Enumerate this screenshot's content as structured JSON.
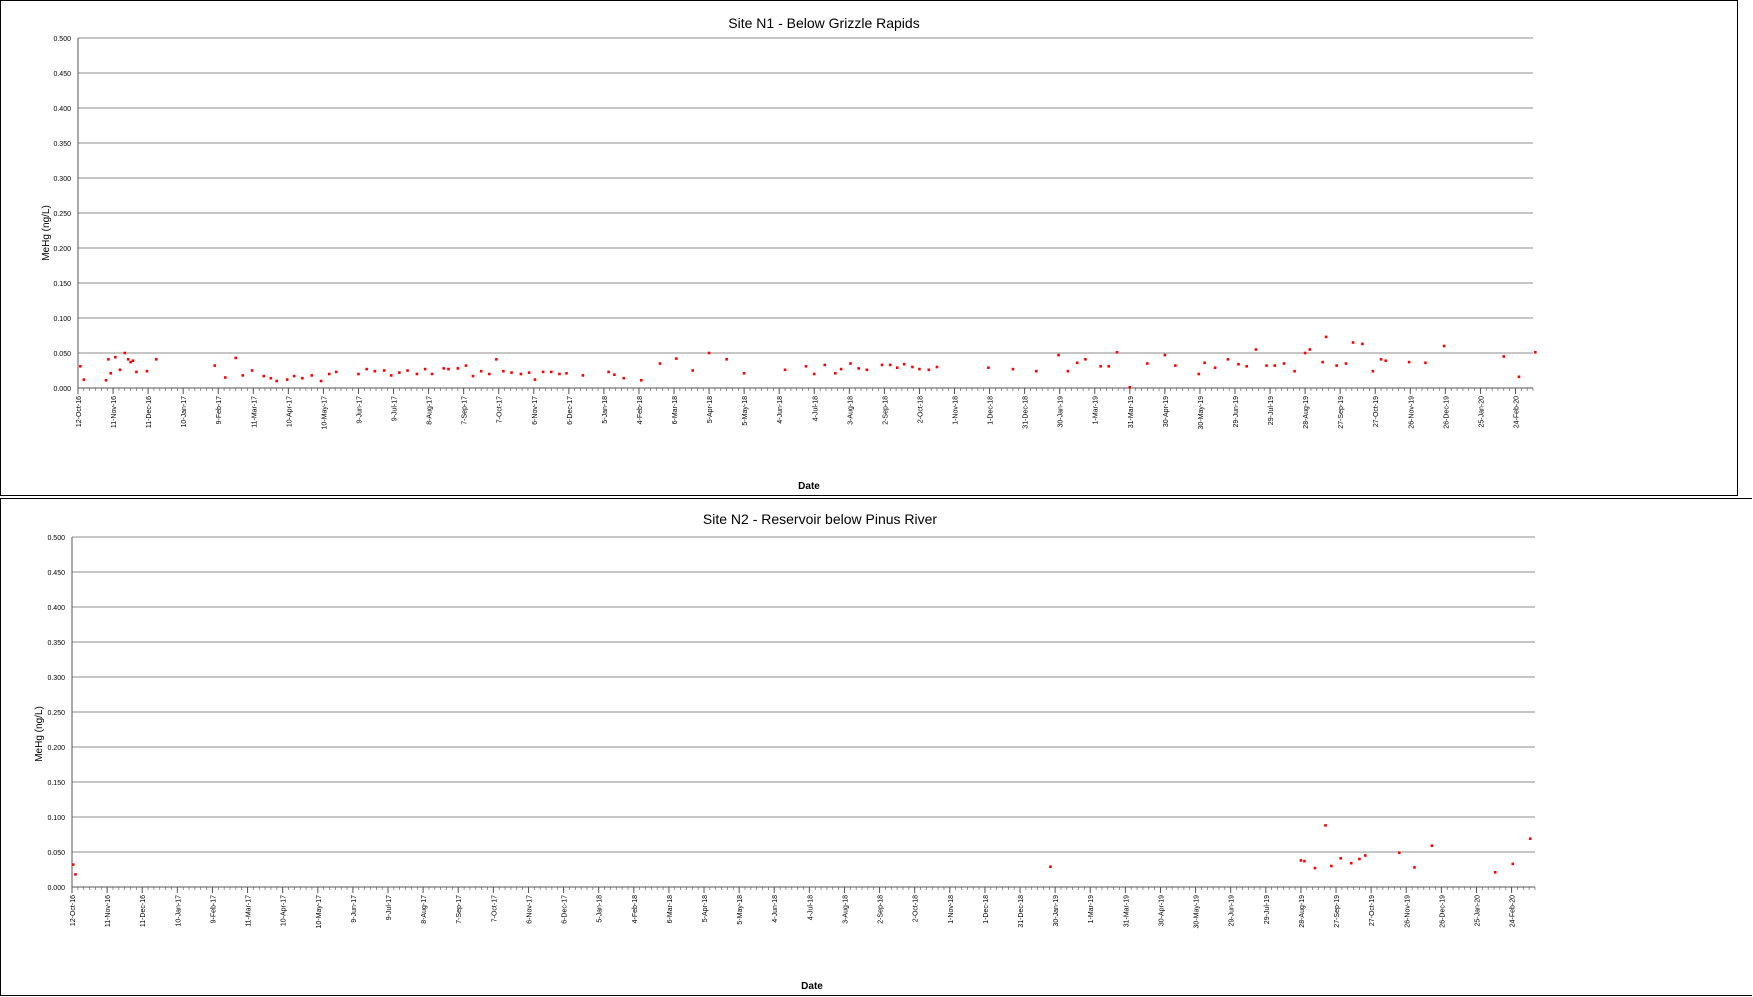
{
  "chart_data": [
    {
      "type": "scatter",
      "title": "Site N1 - Below Grizzle Rapids",
      "xlabel": "Date",
      "ylabel": "MeHg (ng/L)",
      "ylim": [
        0,
        0.5
      ],
      "yticks": [
        "0.000",
        "0.050",
        "0.100",
        "0.150",
        "0.200",
        "0.250",
        "0.300",
        "0.350",
        "0.400",
        "0.450",
        "0.500"
      ],
      "xlim": [
        "2016-10-12",
        "2020-03-10"
      ],
      "xtick_labels": [
        "12-Oct-16",
        "11-Nov-16",
        "11-Dec-16",
        "10-Jan-17",
        "9-Feb-17",
        "11-Mar-17",
        "10-Apr-17",
        "10-May-17",
        "9-Jun-17",
        "9-Jul-17",
        "8-Aug-17",
        "7-Sep-17",
        "7-Oct-17",
        "6-Nov-17",
        "6-Dec-17",
        "5-Jan-18",
        "4-Feb-18",
        "6-Mar-18",
        "5-Apr-18",
        "5-May-18",
        "4-Jun-18",
        "4-Jul-18",
        "3-Aug-18",
        "2-Sep-18",
        "2-Oct-18",
        "1-Nov-18",
        "1-Dec-18",
        "31-Dec-18",
        "30-Jan-19",
        "1-Mar-19",
        "31-Mar-19",
        "30-Apr-19",
        "30-May-19",
        "29-Jun-19",
        "29-Jul-19",
        "28-Aug-19",
        "27-Sep-19",
        "27-Oct-19",
        "26-Nov-19",
        "26-Dec-19",
        "25-Jan-20",
        "24-Feb-20"
      ],
      "grid": true,
      "legend": "none",
      "marker_color": "#ff0000",
      "points": [
        {
          "x": "2016-10-14",
          "y": 0.031
        },
        {
          "x": "2016-10-17",
          "y": 0.012
        },
        {
          "x": "2016-11-05",
          "y": 0.011
        },
        {
          "x": "2016-11-07",
          "y": 0.041
        },
        {
          "x": "2016-11-09",
          "y": 0.021
        },
        {
          "x": "2016-11-13",
          "y": 0.044
        },
        {
          "x": "2016-11-17",
          "y": 0.026
        },
        {
          "x": "2016-11-21",
          "y": 0.05
        },
        {
          "x": "2016-11-24",
          "y": 0.041
        },
        {
          "x": "2016-11-26",
          "y": 0.037
        },
        {
          "x": "2016-11-28",
          "y": 0.039
        },
        {
          "x": "2016-12-01",
          "y": 0.023
        },
        {
          "x": "2016-12-10",
          "y": 0.024
        },
        {
          "x": "2016-12-18",
          "y": 0.041
        },
        {
          "x": "2017-02-06",
          "y": 0.032
        },
        {
          "x": "2017-02-15",
          "y": 0.015
        },
        {
          "x": "2017-02-24",
          "y": 0.043
        },
        {
          "x": "2017-03-02",
          "y": 0.018
        },
        {
          "x": "2017-03-10",
          "y": 0.025
        },
        {
          "x": "2017-03-20",
          "y": 0.017
        },
        {
          "x": "2017-03-26",
          "y": 0.014
        },
        {
          "x": "2017-03-31",
          "y": 0.01
        },
        {
          "x": "2017-04-09",
          "y": 0.012
        },
        {
          "x": "2017-04-15",
          "y": 0.017
        },
        {
          "x": "2017-04-22",
          "y": 0.014
        },
        {
          "x": "2017-04-30",
          "y": 0.018
        },
        {
          "x": "2017-05-08",
          "y": 0.01
        },
        {
          "x": "2017-05-15",
          "y": 0.02
        },
        {
          "x": "2017-05-21",
          "y": 0.023
        },
        {
          "x": "2017-06-09",
          "y": 0.02
        },
        {
          "x": "2017-06-16",
          "y": 0.027
        },
        {
          "x": "2017-06-23",
          "y": 0.024
        },
        {
          "x": "2017-07-01",
          "y": 0.025
        },
        {
          "x": "2017-07-07",
          "y": 0.018
        },
        {
          "x": "2017-07-14",
          "y": 0.022
        },
        {
          "x": "2017-07-21",
          "y": 0.025
        },
        {
          "x": "2017-07-29",
          "y": 0.02
        },
        {
          "x": "2017-08-05",
          "y": 0.027
        },
        {
          "x": "2017-08-11",
          "y": 0.02
        },
        {
          "x": "2017-08-21",
          "y": 0.028
        },
        {
          "x": "2017-08-25",
          "y": 0.027
        },
        {
          "x": "2017-09-02",
          "y": 0.028
        },
        {
          "x": "2017-09-09",
          "y": 0.032
        },
        {
          "x": "2017-09-15",
          "y": 0.017
        },
        {
          "x": "2017-09-22",
          "y": 0.024
        },
        {
          "x": "2017-09-29",
          "y": 0.02
        },
        {
          "x": "2017-10-05",
          "y": 0.041
        },
        {
          "x": "2017-10-11",
          "y": 0.024
        },
        {
          "x": "2017-10-18",
          "y": 0.022
        },
        {
          "x": "2017-10-26",
          "y": 0.02
        },
        {
          "x": "2017-11-02",
          "y": 0.022
        },
        {
          "x": "2017-11-07",
          "y": 0.012
        },
        {
          "x": "2017-11-14",
          "y": 0.023
        },
        {
          "x": "2017-11-21",
          "y": 0.023
        },
        {
          "x": "2017-11-28",
          "y": 0.02
        },
        {
          "x": "2017-12-04",
          "y": 0.021
        },
        {
          "x": "2017-12-18",
          "y": 0.018
        },
        {
          "x": "2018-01-09",
          "y": 0.023
        },
        {
          "x": "2018-01-14",
          "y": 0.019
        },
        {
          "x": "2018-01-22",
          "y": 0.014
        },
        {
          "x": "2018-02-06",
          "y": 0.011
        },
        {
          "x": "2018-02-22",
          "y": 0.035
        },
        {
          "x": "2018-03-08",
          "y": 0.042
        },
        {
          "x": "2018-03-22",
          "y": 0.025
        },
        {
          "x": "2018-04-05",
          "y": 0.05
        },
        {
          "x": "2018-04-20",
          "y": 0.041
        },
        {
          "x": "2018-05-05",
          "y": 0.021
        },
        {
          "x": "2018-06-09",
          "y": 0.026
        },
        {
          "x": "2018-06-27",
          "y": 0.031
        },
        {
          "x": "2018-07-04",
          "y": 0.02
        },
        {
          "x": "2018-07-13",
          "y": 0.033
        },
        {
          "x": "2018-07-22",
          "y": 0.021
        },
        {
          "x": "2018-07-27",
          "y": 0.027
        },
        {
          "x": "2018-08-04",
          "y": 0.035
        },
        {
          "x": "2018-08-11",
          "y": 0.028
        },
        {
          "x": "2018-08-18",
          "y": 0.026
        },
        {
          "x": "2018-08-31",
          "y": 0.033
        },
        {
          "x": "2018-09-07",
          "y": 0.033
        },
        {
          "x": "2018-09-13",
          "y": 0.029
        },
        {
          "x": "2018-09-19",
          "y": 0.034
        },
        {
          "x": "2018-09-26",
          "y": 0.03
        },
        {
          "x": "2018-10-02",
          "y": 0.027
        },
        {
          "x": "2018-10-10",
          "y": 0.026
        },
        {
          "x": "2018-10-17",
          "y": 0.03
        },
        {
          "x": "2018-11-30",
          "y": 0.029
        },
        {
          "x": "2018-12-21",
          "y": 0.027
        },
        {
          "x": "2019-01-10",
          "y": 0.024
        },
        {
          "x": "2019-01-29",
          "y": 0.047
        },
        {
          "x": "2019-02-06",
          "y": 0.024
        },
        {
          "x": "2019-02-14",
          "y": 0.036
        },
        {
          "x": "2019-02-21",
          "y": 0.041
        },
        {
          "x": "2019-03-06",
          "y": 0.031
        },
        {
          "x": "2019-03-13",
          "y": 0.031
        },
        {
          "x": "2019-03-20",
          "y": 0.051
        },
        {
          "x": "2019-03-31",
          "y": 0.001
        },
        {
          "x": "2019-04-15",
          "y": 0.035
        },
        {
          "x": "2019-04-30",
          "y": 0.047
        },
        {
          "x": "2019-05-09",
          "y": 0.032
        },
        {
          "x": "2019-05-29",
          "y": 0.02
        },
        {
          "x": "2019-06-03",
          "y": 0.036
        },
        {
          "x": "2019-06-12",
          "y": 0.029
        },
        {
          "x": "2019-06-23",
          "y": 0.041
        },
        {
          "x": "2019-07-02",
          "y": 0.034
        },
        {
          "x": "2019-07-09",
          "y": 0.031
        },
        {
          "x": "2019-07-17",
          "y": 0.055
        },
        {
          "x": "2019-07-26",
          "y": 0.032
        },
        {
          "x": "2019-08-02",
          "y": 0.032
        },
        {
          "x": "2019-08-10",
          "y": 0.035
        },
        {
          "x": "2019-08-19",
          "y": 0.024
        },
        {
          "x": "2019-08-28",
          "y": 0.05
        },
        {
          "x": "2019-09-01",
          "y": 0.055
        },
        {
          "x": "2019-09-12",
          "y": 0.037
        },
        {
          "x": "2019-09-15",
          "y": 0.073
        },
        {
          "x": "2019-09-24",
          "y": 0.032
        },
        {
          "x": "2019-10-02",
          "y": 0.035
        },
        {
          "x": "2019-10-08",
          "y": 0.065
        },
        {
          "x": "2019-10-16",
          "y": 0.063
        },
        {
          "x": "2019-10-25",
          "y": 0.024
        },
        {
          "x": "2019-11-01",
          "y": 0.041
        },
        {
          "x": "2019-11-05",
          "y": 0.039
        },
        {
          "x": "2019-11-25",
          "y": 0.037
        },
        {
          "x": "2019-12-09",
          "y": 0.036
        },
        {
          "x": "2019-12-25",
          "y": 0.06
        },
        {
          "x": "2020-02-14",
          "y": 0.045
        },
        {
          "x": "2020-02-27",
          "y": 0.016
        },
        {
          "x": "2020-03-12",
          "y": 0.051
        }
      ]
    },
    {
      "type": "scatter",
      "title": "Site N2 - Reservoir below Pinus River",
      "xlabel": "Date",
      "ylabel": "MeHg (ng/L)",
      "ylim": [
        0,
        0.5
      ],
      "yticks": [
        "0.000",
        "0.050",
        "0.100",
        "0.150",
        "0.200",
        "0.250",
        "0.300",
        "0.350",
        "0.400",
        "0.450",
        "0.500"
      ],
      "xlim": [
        "2016-10-12",
        "2020-03-15"
      ],
      "xtick_labels": [
        "12-Oct-16",
        "11-Nov-16",
        "11-Dec-16",
        "10-Jan-17",
        "9-Feb-17",
        "11-Mar-17",
        "10-Apr-17",
        "10-May-17",
        "9-Jun-17",
        "9-Jul-17",
        "8-Aug-17",
        "7-Sep-17",
        "7-Oct-17",
        "6-Nov-17",
        "6-Dec-17",
        "5-Jan-18",
        "4-Feb-18",
        "6-Mar-18",
        "5-Apr-18",
        "5-May-18",
        "4-Jun-18",
        "4-Jul-18",
        "3-Aug-18",
        "2-Sep-18",
        "2-Oct-18",
        "1-Nov-18",
        "1-Dec-18",
        "31-Dec-18",
        "30-Jan-19",
        "1-Mar-19",
        "31-Mar-19",
        "30-Apr-19",
        "30-May-19",
        "29-Jun-19",
        "29-Jul-19",
        "28-Aug-19",
        "27-Sep-19",
        "27-Oct-19",
        "26-Nov-19",
        "26-Dec-19",
        "25-Jan-20",
        "24-Feb-20"
      ],
      "grid": true,
      "legend": "none",
      "marker_color": "#ff0000",
      "points": [
        {
          "x": "2016-10-13",
          "y": 0.032
        },
        {
          "x": "2016-10-15",
          "y": 0.018
        },
        {
          "x": "2019-01-26",
          "y": 0.029
        },
        {
          "x": "2019-08-28",
          "y": 0.038
        },
        {
          "x": "2019-08-31",
          "y": 0.037
        },
        {
          "x": "2019-09-09",
          "y": 0.027
        },
        {
          "x": "2019-09-18",
          "y": 0.088
        },
        {
          "x": "2019-09-23",
          "y": 0.03
        },
        {
          "x": "2019-10-01",
          "y": 0.041
        },
        {
          "x": "2019-10-10",
          "y": 0.034
        },
        {
          "x": "2019-10-17",
          "y": 0.04
        },
        {
          "x": "2019-10-22",
          "y": 0.045
        },
        {
          "x": "2019-11-20",
          "y": 0.049
        },
        {
          "x": "2019-12-03",
          "y": 0.028
        },
        {
          "x": "2019-12-18",
          "y": 0.059
        },
        {
          "x": "2020-02-10",
          "y": 0.021
        },
        {
          "x": "2020-02-25",
          "y": 0.033
        },
        {
          "x": "2020-03-11",
          "y": 0.069
        }
      ]
    }
  ]
}
